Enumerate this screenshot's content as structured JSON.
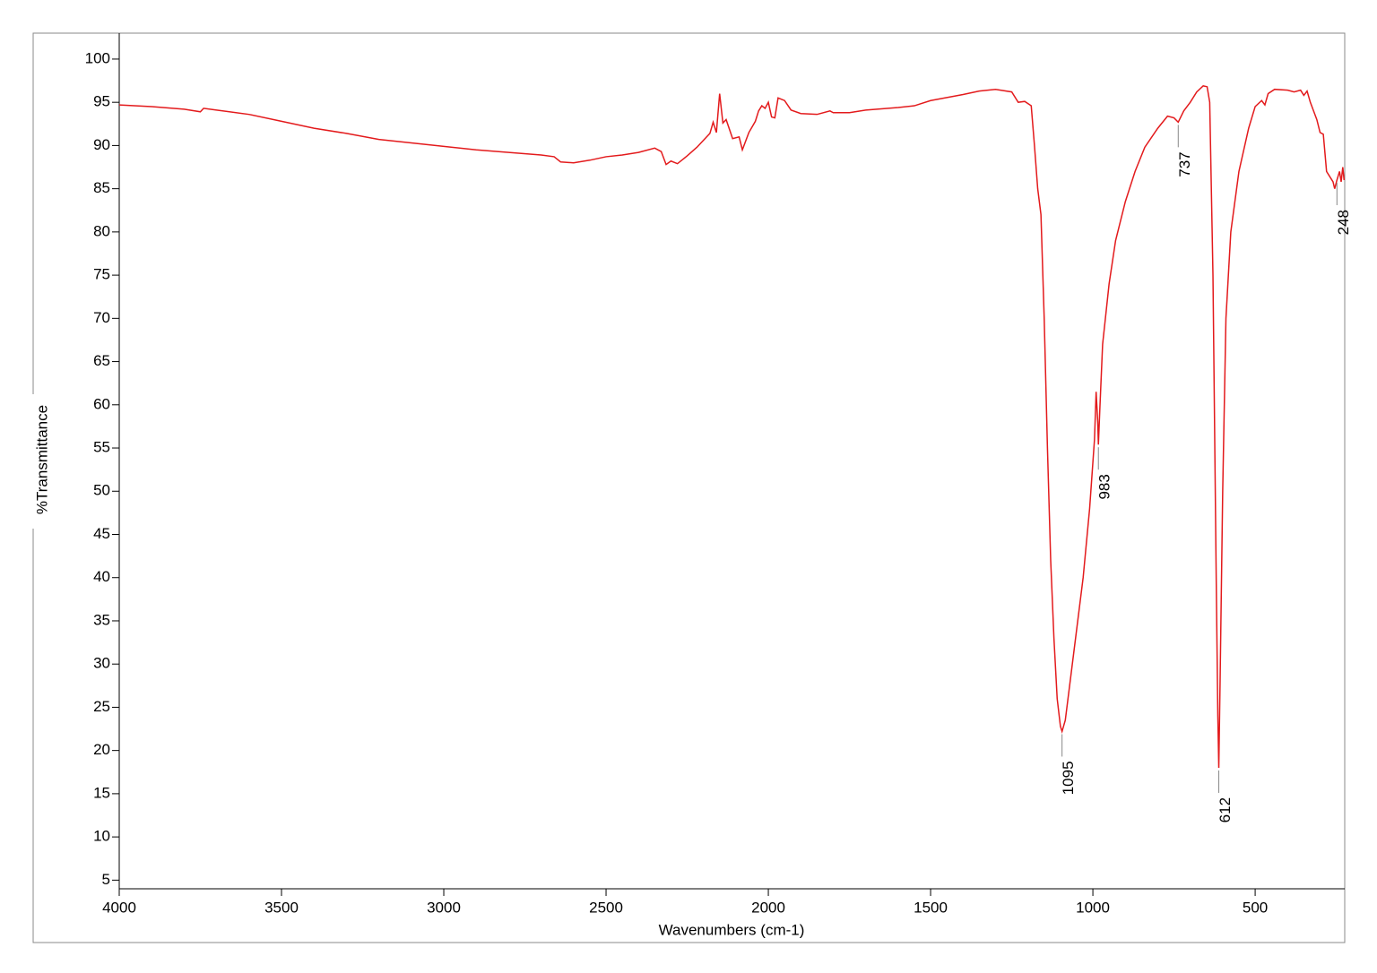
{
  "chart_data": {
    "type": "line",
    "x_label": "Wavenumbers (cm-1)",
    "y_label": "%Transmittance",
    "xlim": [
      4000,
      224
    ],
    "ylim": [
      4,
      103
    ],
    "xticks": [
      4000,
      3500,
      3000,
      2500,
      2000,
      1500,
      1000,
      500
    ],
    "yticks": [
      5,
      10,
      15,
      20,
      25,
      30,
      35,
      40,
      45,
      50,
      55,
      60,
      65,
      70,
      75,
      80,
      85,
      90,
      95,
      100
    ],
    "peaks": [
      1095,
      983,
      737,
      612,
      248
    ],
    "color": "#e31a1c",
    "x": [
      4000,
      3900,
      3800,
      3750,
      3740,
      3700,
      3600,
      3500,
      3400,
      3300,
      3200,
      3100,
      3000,
      2900,
      2800,
      2700,
      2660,
      2640,
      2600,
      2550,
      2500,
      2450,
      2400,
      2350,
      2330,
      2315,
      2300,
      2280,
      2250,
      2220,
      2200,
      2180,
      2170,
      2160,
      2150,
      2140,
      2130,
      2110,
      2090,
      2080,
      2060,
      2040,
      2030,
      2020,
      2010,
      2000,
      1990,
      1980,
      1970,
      1950,
      1930,
      1900,
      1850,
      1810,
      1800,
      1750,
      1700,
      1600,
      1550,
      1500,
      1400,
      1350,
      1300,
      1250,
      1230,
      1210,
      1190,
      1180,
      1170,
      1160,
      1150,
      1140,
      1130,
      1120,
      1110,
      1100,
      1095,
      1085,
      1070,
      1050,
      1030,
      1010,
      995,
      990,
      985,
      983,
      978,
      970,
      950,
      930,
      900,
      870,
      840,
      800,
      770,
      750,
      737,
      720,
      700,
      680,
      660,
      648,
      640,
      630,
      620,
      615,
      612,
      608,
      600,
      590,
      575,
      550,
      520,
      500,
      480,
      470,
      460,
      440,
      400,
      380,
      360,
      350,
      340,
      330,
      310,
      300,
      290,
      280,
      260,
      255,
      248,
      240,
      235,
      230,
      226
    ],
    "values": [
      94.7,
      94.5,
      94.2,
      93.9,
      94.3,
      94.1,
      93.6,
      92.8,
      92.0,
      91.4,
      90.7,
      90.3,
      89.9,
      89.5,
      89.2,
      88.9,
      88.7,
      88.1,
      88.0,
      88.3,
      88.7,
      88.9,
      89.2,
      89.7,
      89.3,
      87.8,
      88.2,
      87.9,
      88.8,
      89.8,
      90.6,
      91.4,
      92.7,
      91.5,
      96.0,
      92.6,
      93.0,
      90.8,
      91.0,
      89.5,
      91.5,
      92.8,
      94.0,
      94.6,
      94.3,
      95.0,
      93.3,
      93.2,
      95.5,
      95.2,
      94.1,
      93.7,
      93.6,
      94.0,
      93.8,
      93.8,
      94.1,
      94.4,
      94.6,
      95.2,
      95.9,
      96.3,
      96.5,
      96.2,
      95.0,
      95.1,
      94.6,
      90,
      85,
      82,
      70,
      55,
      42,
      33,
      26,
      22.8,
      22.2,
      23.5,
      28,
      34,
      40,
      48,
      56,
      61.5,
      58,
      55.4,
      60,
      67,
      74,
      79,
      83.5,
      87,
      89.8,
      92,
      93.4,
      93.2,
      92.7,
      94,
      95,
      96.2,
      96.9,
      96.8,
      95,
      75,
      40,
      24,
      18,
      28,
      50,
      70,
      80,
      87,
      92,
      94.5,
      95.2,
      94.7,
      96.0,
      96.5,
      96.4,
      96.2,
      96.4,
      95.8,
      96.3,
      95,
      93,
      91.5,
      91.3,
      87,
      85.8,
      85,
      86,
      87,
      85.8,
      87.5,
      86.0
    ]
  }
}
